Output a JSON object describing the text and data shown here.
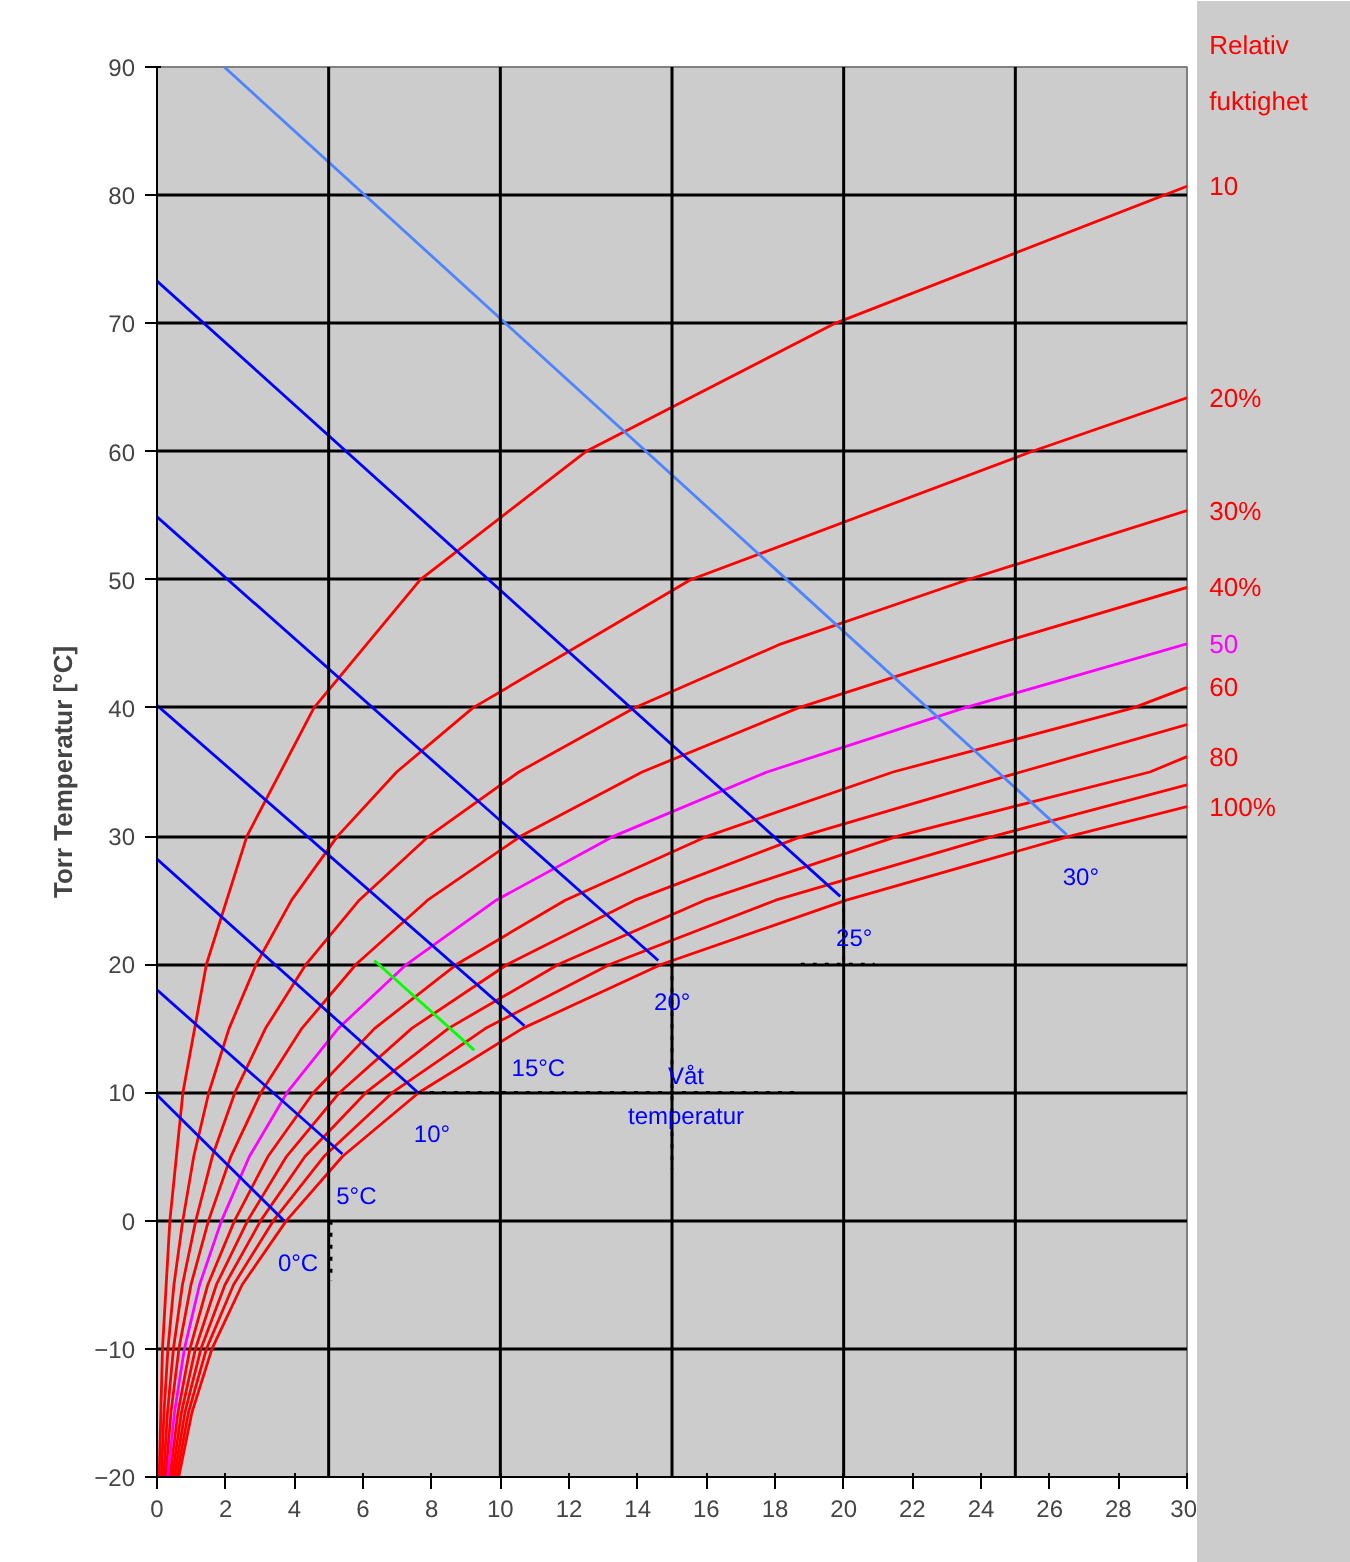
{
  "chart_data": {
    "type": "line",
    "ylabel": "Torr Temperatur [°C]",
    "legend_title": "Relativ fuktighet",
    "xlim": [
      0,
      30
    ],
    "ylim": [
      -20,
      90
    ],
    "xticks": [
      0,
      2,
      4,
      6,
      8,
      10,
      12,
      14,
      16,
      18,
      20,
      22,
      24,
      26,
      28,
      30
    ],
    "yticks": [
      -20,
      -10,
      0,
      10,
      20,
      30,
      40,
      50,
      60,
      70,
      80,
      90
    ],
    "grid": "y",
    "line_style": "solid",
    "ref_lines": [
      {
        "axis": "x",
        "value": 5,
        "color": "#000000"
      },
      {
        "axis": "x",
        "value": 10,
        "color": "#000000"
      },
      {
        "axis": "x",
        "value": 15,
        "color": "#000000"
      },
      {
        "axis": "x",
        "value": 20,
        "color": "#000000"
      },
      {
        "axis": "x",
        "value": 25,
        "color": "#000000"
      }
    ],
    "series": [
      {
        "name": "10",
        "color": "#ff0000",
        "x": [
          0.063,
          0.16,
          0.375,
          0.755,
          1.44,
          2.62,
          4.57,
          7.67,
          12.49,
          19.75,
          30
        ],
        "values": [
          -20,
          -10,
          0,
          10,
          20,
          30,
          40,
          50,
          60,
          70,
          80.7
        ]
      },
      {
        "name": "20%",
        "color": "#ff0000",
        "x": [
          0.127,
          0.203,
          0.319,
          0.494,
          0.751,
          1.07,
          1.51,
          2.1,
          2.89,
          3.92,
          5.26,
          6.98,
          9.2,
          15.54,
          25.48,
          30
        ],
        "values": [
          -20,
          -15,
          -10,
          -5,
          0,
          5,
          10,
          15,
          20,
          25,
          30,
          35,
          40,
          50,
          60,
          64.2
        ]
      },
      {
        "name": "30%",
        "color": "#ff0000",
        "x": [
          0.19,
          0.304,
          0.479,
          0.741,
          1.13,
          1.61,
          2.27,
          3.16,
          4.34,
          5.89,
          7.92,
          10.54,
          13.9,
          18.18,
          23.61,
          30
        ],
        "values": [
          -20,
          -15,
          -10,
          -5,
          0,
          5,
          10,
          15,
          20,
          25,
          30,
          35,
          40,
          45,
          50,
          55.4
        ]
      },
      {
        "name": "40%",
        "color": "#ff0000",
        "x": [
          0.253,
          0.405,
          0.639,
          0.99,
          1.5,
          2.15,
          3.03,
          4.22,
          5.8,
          7.88,
          10.6,
          14.13,
          18.68,
          24.47,
          30
        ],
        "values": [
          -20,
          -15,
          -10,
          -5,
          0,
          5,
          10,
          15,
          20,
          25,
          30,
          35,
          40,
          45,
          49.4
        ]
      },
      {
        "name": "50",
        "color": "#ff00ff",
        "x": [
          0.316,
          0.507,
          0.799,
          1.24,
          1.88,
          2.69,
          3.79,
          5.28,
          7.27,
          9.88,
          13.31,
          17.77,
          23.52,
          30
        ],
        "values": [
          -20,
          -15,
          -10,
          -5,
          0,
          5,
          10,
          15,
          20,
          25,
          30,
          35,
          40,
          45.0
        ]
      },
      {
        "name": "60",
        "color": "#ff0000",
        "x": [
          0.38,
          0.608,
          0.959,
          1.48,
          2.26,
          3.23,
          4.56,
          6.34,
          8.73,
          11.89,
          16.04,
          21.44,
          28.44,
          30
        ],
        "values": [
          -20,
          -15,
          -10,
          -5,
          0,
          5,
          10,
          15,
          20,
          25,
          30,
          35,
          40,
          41.6
        ]
      },
      {
        "color": "#ff0000",
        "x": [
          0.443,
          0.71,
          1.12,
          1.73,
          2.64,
          3.77,
          5.32,
          7.42,
          10.21,
          13.92,
          18.8,
          25.16,
          30
        ],
        "values": [
          -20,
          -15,
          -10,
          -5,
          0,
          5,
          10,
          15,
          20,
          25,
          30,
          35,
          38.7
        ]
      },
      {
        "name": "80",
        "color": "#ff0000",
        "x": [
          0.506,
          0.811,
          1.28,
          1.98,
          3.02,
          4.31,
          6.09,
          8.49,
          11.7,
          15.96,
          21.58,
          28.92,
          30
        ],
        "values": [
          -20,
          -15,
          -10,
          -5,
          0,
          5,
          10,
          15,
          20,
          25,
          30,
          35,
          36.2
        ]
      },
      {
        "color": "#ff0000",
        "x": [
          0.57,
          0.913,
          1.44,
          2.23,
          3.39,
          4.86,
          6.86,
          9.57,
          13.2,
          18.02,
          24.38,
          30
        ],
        "values": [
          -20,
          -15,
          -10,
          -5,
          0,
          5,
          10,
          15,
          20,
          25,
          30,
          34.0
        ]
      },
      {
        "name": "100%",
        "color": "#ff0000",
        "x": [
          0.633,
          1.014,
          1.6,
          2.48,
          3.77,
          5.4,
          7.63,
          10.65,
          14.7,
          20.08,
          26.6,
          30
        ],
        "values": [
          -20,
          -15,
          -10,
          -5,
          0,
          5,
          10,
          15,
          20,
          25,
          30,
          32.3
        ]
      },
      {
        "color": "#0000ff",
        "x": [
          0,
          3.7
        ],
        "values": [
          9.8,
          0
        ]
      },
      {
        "color": "#0000ff",
        "x": [
          0,
          5.4
        ],
        "values": [
          18,
          5.2
        ]
      },
      {
        "color": "#0000ff",
        "x": [
          0,
          7.6
        ],
        "values": [
          28.2,
          10
        ]
      },
      {
        "color": "#0000ff",
        "x": [
          0,
          10.7
        ],
        "values": [
          40.2,
          15.2
        ]
      },
      {
        "color": "#0000ff",
        "x": [
          0,
          14.6
        ],
        "values": [
          54.9,
          20.3
        ]
      },
      {
        "color": "#0000ff",
        "x": [
          0,
          19.9
        ],
        "values": [
          73.3,
          25.3
        ]
      },
      {
        "color": "#4d84ff",
        "x": [
          1.96,
          26.5
        ],
        "values": [
          90,
          30.1
        ]
      },
      {
        "color": "#00ff00",
        "x": [
          6.33,
          9.24
        ],
        "values": [
          20.3,
          13.3
        ]
      },
      {
        "color": "#000000",
        "line_style": "dotted",
        "x": [
          7.6,
          18.75
        ],
        "values": [
          10,
          10
        ]
      },
      {
        "color": "#000000",
        "line_style": "dotted",
        "x": [
          15,
          15
        ],
        "values": [
          20,
          4
        ]
      },
      {
        "color": "#000000",
        "line_style": "dotted",
        "x": [
          18.75,
          20.9
        ],
        "values": [
          20,
          20
        ]
      },
      {
        "color": "#000000",
        "line_style": "dotted",
        "x": [
          20,
          20
        ],
        "values": [
          25.3,
          20
        ]
      },
      {
        "color": "#000000",
        "line_style": "dotted",
        "x": [
          5.07,
          5.07
        ],
        "values": [
          0,
          -4.7
        ]
      }
    ],
    "annotations": [
      {
        "text": "0°C",
        "x": 3.7,
        "y": 0
      },
      {
        "text": "5°C",
        "x": 5.4,
        "y": 5.2
      },
      {
        "text": "10°",
        "x": 7.6,
        "y": 10
      },
      {
        "text": "15°C",
        "x": 10.7,
        "y": 15.2
      },
      {
        "text": "20°",
        "x": 14.6,
        "y": 20.3
      },
      {
        "text": "Våt temperatur",
        "x": 15,
        "y": 13
      },
      {
        "text": "25°",
        "x": 19.9,
        "y": 25.3
      },
      {
        "text": "30°",
        "x": 26.5,
        "y": 30.1
      }
    ]
  }
}
